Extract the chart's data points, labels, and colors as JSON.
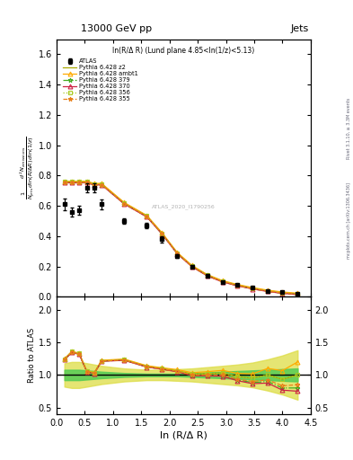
{
  "title_left": "13000 GeV pp",
  "title_right": "Jets",
  "panel_title": "ln(R/Δ R) (Lund plane 4.85<ln(1/z)<5.13)",
  "ylabel_ratio": "Ratio to ATLAS",
  "xlabel": "ln (R/Δ R)",
  "right_label": "Rivet 3.1.10, ≥ 3.3M events",
  "right_label2": "mcplots.cern.ch [arXiv:1306.3436]",
  "watermark": "ATLAS_2020_I1790256",
  "xlim": [
    0,
    4.5
  ],
  "ylim_main": [
    0,
    1.7
  ],
  "ylim_ratio": [
    0.4,
    2.2
  ],
  "yticks_main": [
    0.0,
    0.2,
    0.4,
    0.6,
    0.8,
    1.0,
    1.2,
    1.4,
    1.6
  ],
  "yticks_ratio": [
    0.5,
    1.0,
    1.5,
    2.0
  ],
  "atlas_x": [
    0.14,
    0.27,
    0.4,
    0.54,
    0.67,
    0.8,
    1.2,
    1.6,
    1.87,
    2.14,
    2.4,
    2.67,
    2.94,
    3.2,
    3.47,
    3.74,
    4.0,
    4.27
  ],
  "atlas_y": [
    0.61,
    0.56,
    0.57,
    0.72,
    0.72,
    0.61,
    0.5,
    0.47,
    0.38,
    0.27,
    0.2,
    0.14,
    0.1,
    0.08,
    0.06,
    0.04,
    0.03,
    0.02
  ],
  "atlas_yerr": [
    0.04,
    0.03,
    0.03,
    0.03,
    0.03,
    0.03,
    0.02,
    0.02,
    0.02,
    0.01,
    0.01,
    0.01,
    0.005,
    0.005,
    0.003,
    0.003,
    0.002,
    0.002
  ],
  "mc_x": [
    0.14,
    0.27,
    0.4,
    0.54,
    0.67,
    0.8,
    1.2,
    1.6,
    1.87,
    2.14,
    2.4,
    2.67,
    2.94,
    3.2,
    3.47,
    3.74,
    4.0,
    4.27
  ],
  "p355_y": [
    0.755,
    0.755,
    0.755,
    0.755,
    0.74,
    0.74,
    0.615,
    0.53,
    0.415,
    0.285,
    0.2,
    0.14,
    0.1,
    0.075,
    0.054,
    0.037,
    0.025,
    0.017
  ],
  "p356_y": [
    0.76,
    0.76,
    0.758,
    0.76,
    0.743,
    0.743,
    0.618,
    0.533,
    0.418,
    0.288,
    0.203,
    0.143,
    0.103,
    0.078,
    0.057,
    0.04,
    0.028,
    0.02
  ],
  "p370_y": [
    0.752,
    0.752,
    0.752,
    0.752,
    0.738,
    0.738,
    0.612,
    0.527,
    0.413,
    0.283,
    0.198,
    0.138,
    0.098,
    0.073,
    0.052,
    0.035,
    0.023,
    0.015
  ],
  "p379_y": [
    0.753,
    0.753,
    0.753,
    0.753,
    0.739,
    0.739,
    0.613,
    0.528,
    0.414,
    0.284,
    0.199,
    0.139,
    0.099,
    0.074,
    0.053,
    0.036,
    0.024,
    0.016
  ],
  "pambt1_y": [
    0.762,
    0.762,
    0.762,
    0.762,
    0.748,
    0.748,
    0.622,
    0.537,
    0.422,
    0.292,
    0.207,
    0.147,
    0.107,
    0.082,
    0.061,
    0.044,
    0.032,
    0.024
  ],
  "pz2_y": [
    0.758,
    0.758,
    0.758,
    0.758,
    0.744,
    0.744,
    0.618,
    0.533,
    0.418,
    0.288,
    0.203,
    0.143,
    0.103,
    0.078,
    0.057,
    0.04,
    0.028,
    0.02
  ],
  "green_band_lo": [
    0.92,
    0.92,
    0.92,
    0.93,
    0.94,
    0.95,
    0.97,
    0.98,
    0.98,
    0.98,
    0.97,
    0.96,
    0.95,
    0.94,
    0.93,
    0.92,
    0.91,
    0.9
  ],
  "green_band_hi": [
    1.08,
    1.08,
    1.08,
    1.07,
    1.06,
    1.05,
    1.03,
    1.02,
    1.02,
    1.02,
    1.03,
    1.04,
    1.05,
    1.06,
    1.07,
    1.08,
    1.09,
    1.1
  ],
  "yellow_band_lo": [
    0.82,
    0.8,
    0.8,
    0.82,
    0.84,
    0.86,
    0.9,
    0.92,
    0.92,
    0.91,
    0.9,
    0.88,
    0.86,
    0.84,
    0.81,
    0.76,
    0.7,
    0.62
  ],
  "yellow_band_hi": [
    1.18,
    1.2,
    1.2,
    1.18,
    1.16,
    1.14,
    1.1,
    1.08,
    1.08,
    1.09,
    1.1,
    1.12,
    1.14,
    1.16,
    1.19,
    1.24,
    1.3,
    1.38
  ],
  "colors": {
    "p355": "#e8801a",
    "p356": "#aacc22",
    "p370": "#cc2244",
    "p379": "#44aa22",
    "pambt1": "#ffaa00",
    "pz2": "#aaaa00",
    "atlas": "#000000",
    "green_band": "#55cc55",
    "yellow_band": "#dddd44"
  }
}
